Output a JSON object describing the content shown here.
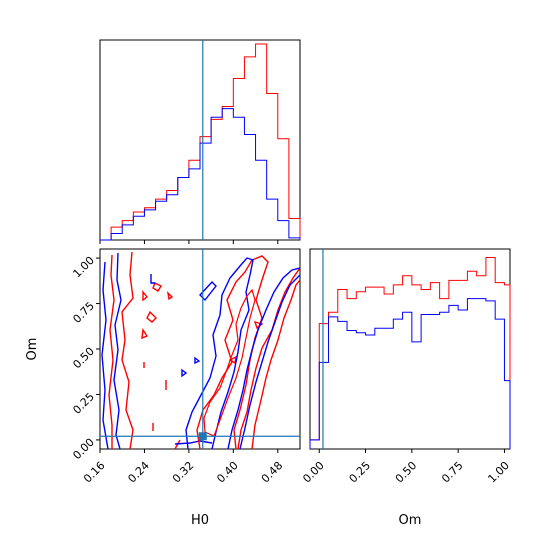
{
  "chart_data": {
    "type": "corner",
    "parameters": [
      "H0",
      "Om"
    ],
    "series_colors": [
      "#ff0000",
      "#0000ff"
    ],
    "truth_color": "#1f77b4",
    "truth": {
      "H0": 0.345,
      "Om": 0.02
    },
    "panels": [
      {
        "id": "hist-h0",
        "type": "histogram",
        "xlim": [
          0.16,
          0.52
        ],
        "bin_edges": [
          0.16,
          0.18,
          0.2,
          0.22,
          0.24,
          0.26,
          0.28,
          0.3,
          0.32,
          0.34,
          0.36,
          0.38,
          0.4,
          0.42,
          0.44,
          0.46,
          0.48,
          0.5,
          0.52
        ],
        "series": [
          {
            "color": "#ff0000",
            "counts": [
              0,
              0.06,
              0.09,
              0.13,
              0.15,
              0.19,
              0.23,
              0.29,
              0.37,
              0.48,
              0.56,
              0.62,
              0.75,
              0.85,
              0.91,
              0.68,
              0.47,
              0.1
            ]
          },
          {
            "color": "#0000ff",
            "counts": [
              0,
              0.03,
              0.07,
              0.11,
              0.14,
              0.18,
              0.21,
              0.29,
              0.33,
              0.45,
              0.57,
              0.61,
              0.57,
              0.49,
              0.37,
              0.19,
              0.09,
              0.01
            ]
          }
        ]
      },
      {
        "id": "contour-h0-om",
        "type": "contour",
        "xlim": [
          0.16,
          0.52
        ],
        "ylim": [
          -0.05,
          1.05
        ],
        "xticks": [
          "0.16",
          "0.24",
          "0.32",
          "0.40",
          "0.48"
        ],
        "yticks": [
          "0.00",
          "0.25",
          "0.50",
          "0.75",
          "1.00"
        ],
        "xlabel": "H0",
        "ylabel": "Om"
      },
      {
        "id": "hist-om",
        "type": "histogram",
        "xlim": [
          -0.05,
          1.03
        ],
        "xticks": [
          "0.00",
          "0.25",
          "0.50",
          "0.75",
          "1.00"
        ],
        "xlabel": "Om",
        "bin_edges": [
          -0.05,
          0,
          0.05,
          0.1,
          0.15,
          0.2,
          0.25,
          0.3,
          0.35,
          0.4,
          0.45,
          0.5,
          0.55,
          0.6,
          0.65,
          0.7,
          0.75,
          0.8,
          0.85,
          0.9,
          0.95,
          1.0,
          1.03
        ],
        "series": [
          {
            "color": "#ff0000",
            "counts": [
              0.04,
              0.55,
              0.6,
              0.7,
              0.66,
              0.69,
              0.71,
              0.71,
              0.68,
              0.72,
              0.76,
              0.72,
              0.7,
              0.73,
              0.66,
              0.74,
              0.74,
              0.78,
              0.76,
              0.84,
              0.73,
              0.72
            ]
          },
          {
            "color": "#0000ff",
            "counts": [
              0.04,
              0.38,
              0.58,
              0.56,
              0.52,
              0.51,
              0.5,
              0.53,
              0.53,
              0.57,
              0.6,
              0.47,
              0.59,
              0.59,
              0.6,
              0.63,
              0.61,
              0.66,
              0.66,
              0.65,
              0.57,
              0.3
            ]
          }
        ]
      }
    ]
  }
}
